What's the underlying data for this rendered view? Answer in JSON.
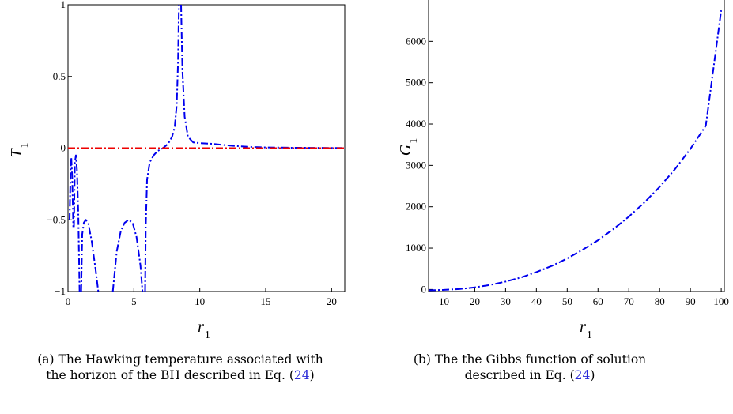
{
  "chart_data": [
    {
      "type": "line",
      "xlabel": "r",
      "xlabel_sub": "1",
      "ylabel": "T",
      "ylabel_sub": "1",
      "xlim": [
        0,
        21
      ],
      "ylim": [
        -1,
        1
      ],
      "grid": false,
      "x_ticks": [
        0,
        5,
        10,
        15,
        20
      ],
      "x_tick_labels": [
        "0",
        "5",
        "10",
        "15",
        "20"
      ],
      "y_ticks": [
        -1,
        -0.5,
        0,
        0.5,
        1
      ],
      "y_tick_labels": [
        "−1",
        "−0.5",
        "0",
        "0.5",
        "1"
      ],
      "series": [
        {
          "color": "#0000ee",
          "style": "dash-dot",
          "segments": [
            [
              [
                0.12,
                -0.5
              ],
              [
                0.2,
                -0.15
              ],
              [
                0.25,
                -0.07
              ]
            ],
            [
              [
                0.25,
                -0.07
              ],
              [
                0.32,
                -0.2
              ],
              [
                0.4,
                -0.55
              ]
            ],
            [
              [
                0.45,
                -0.55
              ],
              [
                0.52,
                -0.1
              ],
              [
                0.6,
                -0.05
              ],
              [
                0.68,
                -0.15
              ],
              [
                0.78,
                -0.45
              ],
              [
                0.88,
                -1.0
              ]
            ],
            [
              [
                1.0,
                -1.0
              ],
              [
                1.08,
                -0.6
              ],
              [
                1.2,
                -0.52
              ],
              [
                1.35,
                -0.5
              ],
              [
                1.55,
                -0.53
              ],
              [
                1.8,
                -0.65
              ],
              [
                2.1,
                -0.85
              ],
              [
                2.3,
                -1.0
              ]
            ],
            [
              [
                3.4,
                -1.0
              ],
              [
                3.7,
                -0.72
              ],
              [
                4.0,
                -0.58
              ],
              [
                4.3,
                -0.52
              ],
              [
                4.6,
                -0.5
              ],
              [
                4.9,
                -0.52
              ],
              [
                5.2,
                -0.62
              ],
              [
                5.5,
                -0.82
              ],
              [
                5.65,
                -1.0
              ]
            ],
            [
              [
                5.85,
                -1.0
              ],
              [
                5.9,
                -0.55
              ],
              [
                6.0,
                -0.22
              ],
              [
                6.2,
                -0.1
              ],
              [
                6.5,
                -0.05
              ],
              [
                6.8,
                -0.02
              ],
              [
                7.2,
                0.0
              ],
              [
                7.6,
                0.03
              ],
              [
                7.9,
                0.08
              ],
              [
                8.1,
                0.15
              ],
              [
                8.25,
                0.3
              ],
              [
                8.35,
                0.6
              ],
              [
                8.42,
                1.0
              ]
            ],
            [
              [
                8.58,
                1.0
              ],
              [
                8.68,
                0.55
              ],
              [
                8.85,
                0.22
              ],
              [
                9.1,
                0.08
              ],
              [
                9.5,
                0.04
              ],
              [
                10.0,
                0.035
              ],
              [
                11.0,
                0.03
              ],
              [
                12.0,
                0.02
              ],
              [
                13.0,
                0.013
              ],
              [
                14.0,
                0.008
              ],
              [
                15.0,
                0.005
              ],
              [
                17.0,
                0.003
              ],
              [
                19.0,
                0.002
              ],
              [
                21.0,
                0.001
              ]
            ]
          ]
        },
        {
          "color": "#ee0000",
          "style": "dash-dot",
          "segments": [
            [
              [
                0,
                0
              ],
              [
                21,
                0
              ]
            ]
          ]
        }
      ]
    },
    {
      "type": "line",
      "xlabel": "r",
      "xlabel_sub": "1",
      "ylabel": "G",
      "ylabel_sub": "1",
      "xlim": [
        5,
        101
      ],
      "ylim": [
        -50,
        7000
      ],
      "grid": false,
      "x_ticks": [
        10,
        20,
        30,
        40,
        50,
        60,
        70,
        80,
        90,
        100
      ],
      "x_tick_labels": [
        "10",
        "20",
        "30",
        "40",
        "50",
        "60",
        "70",
        "80",
        "90",
        "100"
      ],
      "y_ticks": [
        0,
        1000,
        2000,
        3000,
        4000,
        5000,
        6000
      ],
      "y_tick_labels": [
        "0",
        "1000",
        "2000",
        "3000",
        "4000",
        "5000",
        "6000"
      ],
      "series": [
        {
          "color": "#0000ee",
          "style": "dash-dot",
          "segments": [
            [
              [
                5,
                -20
              ],
              [
                10,
                -10
              ],
              [
                15,
                10
              ],
              [
                20,
                50
              ],
              [
                25,
                110
              ],
              [
                30,
                190
              ],
              [
                35,
                290
              ],
              [
                40,
                420
              ],
              [
                45,
                570
              ],
              [
                50,
                750
              ],
              [
                55,
                960
              ],
              [
                60,
                1190
              ],
              [
                65,
                1460
              ],
              [
                70,
                1760
              ],
              [
                75,
                2100
              ],
              [
                80,
                2480
              ],
              [
                85,
                2910
              ],
              [
                90,
                3400
              ],
              [
                95,
                3960
              ],
              [
                100,
                6750
              ]
            ]
          ]
        }
      ]
    }
  ],
  "captions": {
    "a": {
      "text": "(a) The Hawking temperature associated with the horizon of the BH described in Eq. (",
      "ref": "24",
      "close": ")"
    },
    "b": {
      "text": "(b) The the Gibbs function of solution described in Eq. (",
      "ref": "24",
      "close": ")"
    }
  }
}
